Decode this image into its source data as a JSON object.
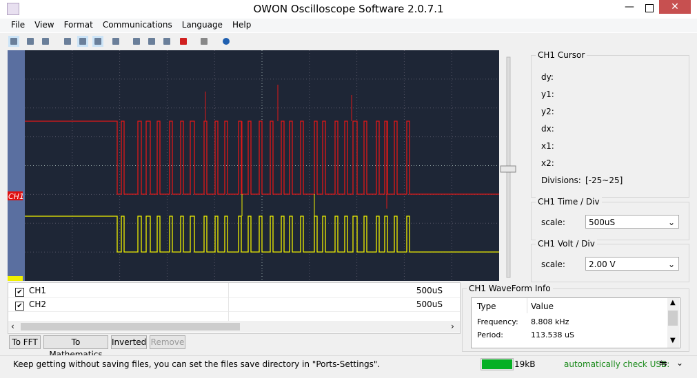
{
  "window": {
    "title": "OWON Oscilloscope Software 2.0.7.1"
  },
  "menu": [
    "File",
    "View",
    "Format",
    "Communications",
    "Language",
    "Help"
  ],
  "markers": {
    "ch1": "CH1"
  },
  "channels": [
    {
      "name": "CH1",
      "timebase": "500uS"
    },
    {
      "name": "CH2",
      "timebase": "500uS"
    }
  ],
  "buttons": [
    "To FFT",
    "To Mathematics",
    "Inverted",
    "Remove"
  ],
  "cursor": {
    "title": "CH1 Cursor",
    "fields": [
      {
        "label": "dy:"
      },
      {
        "label": "y1:"
      },
      {
        "label": "y2:"
      },
      {
        "label": "dx:"
      },
      {
        "label": "x1:"
      },
      {
        "label": "x2:"
      },
      {
        "label": "Divisions:",
        "value": "[-25~25]"
      }
    ]
  },
  "time_div": {
    "title": "CH1 Time / Div",
    "label": "scale:",
    "value": "500uS"
  },
  "volt_div": {
    "title": "CH1 Volt / Div",
    "label": "scale:",
    "value": "2.00 V"
  },
  "waveform_info": {
    "title": "CH1 WaveForm Info",
    "headers": [
      "Type",
      "Value"
    ],
    "rows": [
      [
        "Frequency:",
        "8.808 kHz"
      ],
      [
        "Period:",
        "113.538 uS"
      ]
    ]
  },
  "status": {
    "message": "Keep getting without saving files, you can set the files save directory in \"Ports-Settings\".",
    "size": "19kB",
    "usb": "automatically check USB:"
  }
}
